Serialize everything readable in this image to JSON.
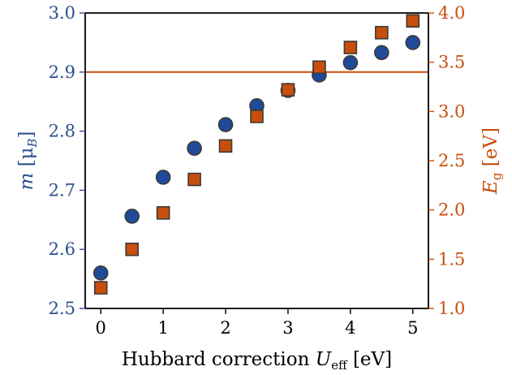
{
  "colors": {
    "left_axis": "#2c4f8f",
    "right_axis": "#c84e0c",
    "circle_fill": "#1f4a99",
    "square_fill": "#c84e0c",
    "marker_edge": "#3a3a3a",
    "ref_line": "#c84e0c",
    "frame": "#000000",
    "xlabel": "#000000"
  },
  "chart_data": {
    "type": "scatter",
    "xlabel": {
      "main": "Hubbard correction ",
      "var": "U",
      "sub": "eff",
      "unit": " [eV]"
    },
    "ylabel_left": {
      "var": "m",
      "unit": " [μ",
      "sub": "B",
      "close": "]"
    },
    "ylabel_right": {
      "var": "E",
      "sub": "g",
      "unit": " [eV]"
    },
    "x_ticks": [
      "0",
      "1",
      "2",
      "3",
      "4",
      "5"
    ],
    "y_left_ticks": [
      "2.5",
      "2.6",
      "2.7",
      "2.8",
      "2.9",
      "3.0"
    ],
    "y_right_ticks": [
      "1.0",
      "1.5",
      "2.0",
      "2.5",
      "3.0",
      "3.5",
      "4.0"
    ],
    "xlim": [
      -0.25,
      5.25
    ],
    "ylim_left": [
      2.5,
      3.0
    ],
    "ylim_right": [
      1.0,
      4.0
    ],
    "grid": false,
    "legend": "none",
    "reference_line": {
      "axis": "right",
      "y": 3.4
    },
    "series": [
      {
        "marker": "circle",
        "axis": "left",
        "x": [
          0,
          0.5,
          1.0,
          1.5,
          2.0,
          2.5,
          3.0,
          3.5,
          4.0,
          4.5,
          5.0
        ],
        "y": [
          2.56,
          2.656,
          2.722,
          2.771,
          2.811,
          2.843,
          2.869,
          2.895,
          2.916,
          2.933,
          2.95
        ]
      },
      {
        "marker": "square",
        "axis": "right",
        "x": [
          0,
          0.5,
          1.0,
          1.5,
          2.0,
          2.5,
          3.0,
          3.5,
          4.0,
          4.5,
          5.0
        ],
        "y": [
          1.21,
          1.6,
          1.97,
          2.31,
          2.65,
          2.95,
          3.22,
          3.45,
          3.65,
          3.8,
          3.92
        ]
      }
    ]
  }
}
